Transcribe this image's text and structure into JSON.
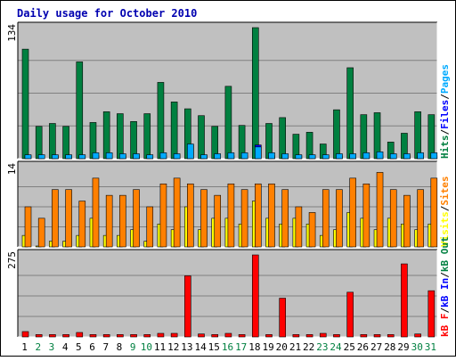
{
  "chart_data": {
    "type": "bar",
    "title": "Daily usage for October 2010",
    "categories": [
      "1",
      "2",
      "3",
      "4",
      "5",
      "6",
      "7",
      "8",
      "9",
      "10",
      "11",
      "12",
      "13",
      "14",
      "15",
      "16",
      "17",
      "18",
      "19",
      "20",
      "21",
      "22",
      "23",
      "24",
      "25",
      "26",
      "27",
      "28",
      "29",
      "30",
      "31"
    ],
    "weekend_days": [
      "2",
      "3",
      "9",
      "10",
      "16",
      "17",
      "23",
      "24",
      "30",
      "31"
    ],
    "panels": [
      {
        "id": "hits",
        "ymax_label": "134",
        "ymax": 134,
        "series": [
          {
            "name": "Hits",
            "color": "#008040",
            "values": [
              112,
              33,
              36,
              33,
              99,
              37,
              48,
              46,
              38,
              46,
              78,
              58,
              51,
              44,
              33,
              74,
              34,
              134,
              36,
              42,
              25,
              27,
              15,
              50,
              93,
              45,
              47,
              17,
              26,
              48,
              45
            ]
          },
          {
            "name": "Files",
            "color": "#0000ff",
            "values": [
              3,
              3,
              3,
              3,
              3,
              3,
              3,
              3,
              3,
              3,
              3,
              3,
              14,
              3,
              3,
              3,
              3,
              14,
              3,
              3,
              3,
              3,
              3,
              3,
              3,
              3,
              3,
              3,
              3,
              3,
              3
            ]
          },
          {
            "name": "Pages",
            "color": "#00aaff",
            "values": [
              4,
              4,
              4,
              4,
              4,
              6,
              6,
              5,
              5,
              4,
              6,
              5,
              15,
              4,
              5,
              6,
              6,
              12,
              6,
              5,
              4,
              4,
              4,
              5,
              5,
              6,
              7,
              5,
              5,
              6,
              6
            ]
          }
        ],
        "axis_legend": [
          {
            "text": "Hits",
            "color": "#008040"
          },
          {
            "text": "Files",
            "color": "#0000ff"
          },
          {
            "text": "Pages",
            "color": "#00aaff"
          }
        ]
      },
      {
        "id": "visits",
        "ymax_label": "14",
        "ymax": 14,
        "series": [
          {
            "name": "Visits",
            "color": "#ffff00",
            "values": [
              2,
              0,
              1,
              1,
              2,
              5,
              2,
              2,
              3,
              1,
              4,
              3,
              7,
              3,
              5,
              5,
              4,
              8,
              5,
              4,
              5,
              4,
              2,
              3,
              6,
              5,
              3,
              5,
              4,
              3,
              4
            ]
          },
          {
            "name": "Sites",
            "color": "#ff8000",
            "values": [
              7,
              5,
              10,
              10,
              8,
              12,
              9,
              9,
              10,
              7,
              11,
              12,
              11,
              10,
              9,
              11,
              10,
              11,
              11,
              10,
              7,
              6,
              10,
              10,
              12,
              11,
              13,
              10,
              9,
              10,
              12
            ]
          }
        ],
        "axis_legend": [
          {
            "text": "Visits",
            "color": "#ffff00"
          },
          {
            "text": "Sites",
            "color": "#ff8000"
          }
        ]
      },
      {
        "id": "kbytes",
        "ymax_label": "275",
        "ymax": 275,
        "series": [
          {
            "name": "kB F",
            "color": "#ff0000",
            "values": [
              18,
              8,
              8,
              8,
              15,
              8,
              8,
              8,
              8,
              8,
              12,
              12,
              205,
              10,
              8,
              12,
              8,
              275,
              8,
              130,
              8,
              8,
              12,
              8,
              150,
              8,
              8,
              8,
              245,
              10,
              155
            ]
          }
        ],
        "axis_legend": [
          {
            "text": "kB F",
            "color": "#ff0000"
          },
          {
            "text": "kB In",
            "color": "#0000ff"
          },
          {
            "text": "kB Out",
            "color": "#008040"
          }
        ]
      }
    ],
    "legend_separator": "/",
    "colors": {
      "title": "#0000b0",
      "weekday_label": "#000000",
      "weekend_label": "#008040",
      "plot_background": "#c0c0c0",
      "gridline": "#808080",
      "frame": "#000000"
    },
    "grid": true
  }
}
